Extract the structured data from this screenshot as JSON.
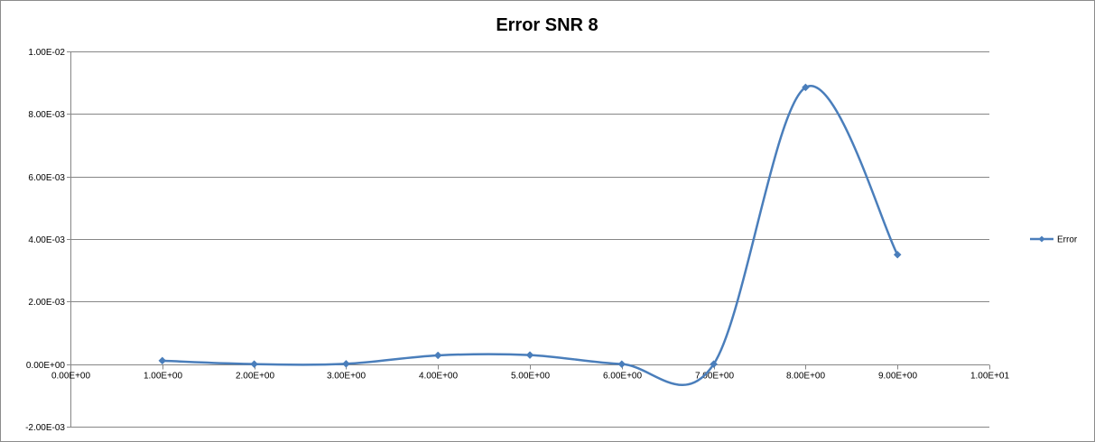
{
  "chart_data": {
    "type": "line",
    "title": "Error SNR 8",
    "xlabel": "",
    "ylabel": "",
    "xlim": [
      0,
      10
    ],
    "ylim": [
      -0.002,
      0.01
    ],
    "x_ticks": [
      0,
      1,
      2,
      3,
      4,
      5,
      6,
      7,
      8,
      9,
      10
    ],
    "x_tick_labels": [
      "0.00E+00",
      "1.00E+00",
      "2.00E+00",
      "3.00E+00",
      "4.00E+00",
      "5.00E+00",
      "6.00E+00",
      "7.00E+00",
      "8.00E+00",
      "9.00E+00",
      "1.00E+01"
    ],
    "y_ticks": [
      -0.002,
      0,
      0.002,
      0.004,
      0.006,
      0.008,
      0.01
    ],
    "y_tick_labels": [
      "-2.00E-03",
      "0.00E+00",
      "2.00E-03",
      "4.00E-03",
      "6.00E-03",
      "8.00E-03",
      "1.00E-02"
    ],
    "grid": "horizontal",
    "smoothed": true,
    "legend_position": "right",
    "series": [
      {
        "name": "Error",
        "color": "#4a7ebb",
        "marker": "diamond",
        "x": [
          1,
          2,
          3,
          4,
          5,
          6,
          7,
          8,
          9
        ],
        "y": [
          0.00011,
          0.0,
          1e-05,
          0.00028,
          0.00029,
          0.0,
          0.0,
          0.00885,
          0.0035
        ]
      }
    ]
  }
}
